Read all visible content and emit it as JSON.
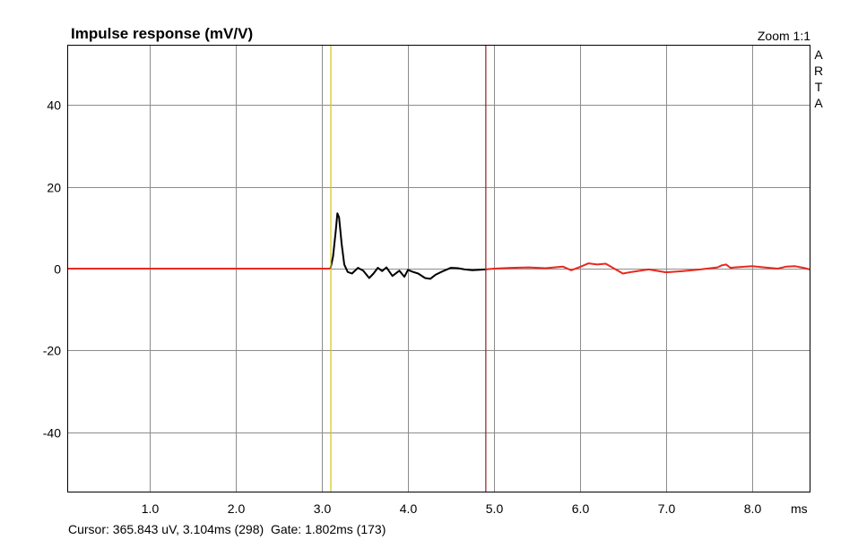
{
  "chart_data": {
    "type": "line",
    "title": "Impulse response (mV/V)",
    "zoom_label": "Zoom 1:1",
    "brand": "ARTA",
    "xlabel": "ms",
    "ylabel": "",
    "xlim": [
      0.05,
      8.67
    ],
    "ylim": [
      -54.5,
      54.5
    ],
    "x_ticks": [
      1.0,
      2.0,
      3.0,
      4.0,
      5.0,
      6.0,
      7.0,
      8.0
    ],
    "x_tick_labels": [
      "1.0",
      "2.0",
      "3.0",
      "4.0",
      "5.0",
      "6.0",
      "7.0",
      "8.0"
    ],
    "y_ticks": [
      40,
      20,
      0,
      -20,
      -40
    ],
    "y_tick_labels": [
      "40",
      "20",
      "0",
      "-20",
      "-40"
    ],
    "grid": true,
    "cursor_x": 3.104,
    "gate_x": 4.906,
    "series": [
      {
        "color": "#e8281e",
        "x": [
          0.05,
          3.0,
          3.05,
          3.1
        ],
        "values": [
          0,
          0,
          0,
          0
        ]
      },
      {
        "color": "#000000",
        "x": [
          3.1,
          3.13,
          3.16,
          3.18,
          3.2,
          3.23,
          3.26,
          3.3,
          3.35,
          3.42,
          3.48,
          3.55,
          3.6,
          3.65,
          3.7,
          3.75,
          3.82,
          3.9,
          3.96,
          4.0,
          4.06,
          4.12,
          4.2,
          4.26,
          4.32,
          4.4,
          4.5,
          4.58,
          4.66,
          4.75,
          4.82,
          4.9
        ],
        "values": [
          0,
          3,
          9,
          13.5,
          12.5,
          6,
          1,
          -0.8,
          -1.2,
          0.2,
          -0.5,
          -2.3,
          -1.2,
          0.2,
          -0.6,
          0.3,
          -1.8,
          -0.5,
          -2.0,
          -0.3,
          -0.8,
          -1.2,
          -2.3,
          -2.5,
          -1.5,
          -0.7,
          0.2,
          0.1,
          -0.2,
          -0.4,
          -0.3,
          -0.2
        ]
      },
      {
        "color": "#e8281e",
        "x": [
          4.9,
          5.0,
          5.2,
          5.4,
          5.6,
          5.8,
          5.9,
          6.0,
          6.1,
          6.2,
          6.3,
          6.4,
          6.5,
          6.6,
          6.8,
          7.0,
          7.2,
          7.4,
          7.6,
          7.65,
          7.7,
          7.75,
          7.8,
          8.0,
          8.2,
          8.3,
          8.4,
          8.5,
          8.6,
          8.67
        ],
        "values": [
          -0.2,
          0,
          0.2,
          0.3,
          0.1,
          0.5,
          -0.4,
          0.4,
          1.3,
          1.0,
          1.2,
          0.0,
          -1.2,
          -0.8,
          -0.2,
          -0.9,
          -0.6,
          -0.2,
          0.3,
          0.8,
          1.0,
          0.2,
          0.3,
          0.6,
          0.2,
          0.0,
          0.5,
          0.6,
          0.2,
          -0.2
        ]
      }
    ]
  },
  "status_bar": {
    "cursor": "Cursor: 365.843 uV, 3.104ms (298)",
    "gate": "Gate: 1.802ms (173)"
  }
}
